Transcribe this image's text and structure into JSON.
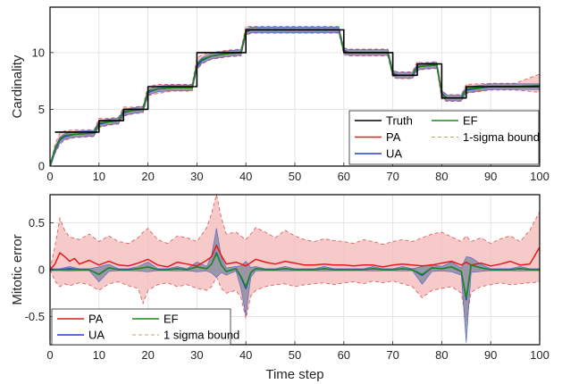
{
  "chart_data": [
    {
      "type": "line",
      "ylabel": "Cardinality",
      "xlim": [
        0,
        100
      ],
      "ylim": [
        0,
        14
      ],
      "xticks": [
        0,
        10,
        20,
        30,
        40,
        50,
        60,
        70,
        80,
        90,
        100
      ],
      "yticks": [
        0,
        5,
        10
      ],
      "grid": true,
      "legend": {
        "placement": "bottom-right",
        "columns": 2
      },
      "series": [
        {
          "name": "Truth",
          "color": "#000000",
          "style": "step",
          "x": [
            1,
            10,
            15,
            20,
            30,
            40,
            60,
            70,
            75,
            80,
            85,
            100
          ],
          "y": [
            3,
            4,
            5,
            7,
            10,
            12,
            10,
            8,
            9,
            6,
            7,
            7
          ]
        },
        {
          "name": "PA",
          "color": "#e31a1c",
          "style": "line",
          "x": [
            0,
            1,
            2,
            3,
            5,
            9,
            10,
            12,
            14,
            15,
            17,
            19,
            20,
            22,
            25,
            29,
            30,
            31,
            33,
            36,
            39,
            40,
            41,
            45,
            50,
            55,
            59,
            60,
            61,
            65,
            69,
            70,
            71,
            74,
            75,
            76,
            79,
            80,
            81,
            84,
            85,
            90,
            95,
            100
          ],
          "y": [
            0,
            1.5,
            2.4,
            2.7,
            2.8,
            2.9,
            3.8,
            3.9,
            4.0,
            4.8,
            4.9,
            5.0,
            6.6,
            6.8,
            6.9,
            6.9,
            9.0,
            9.4,
            9.7,
            9.9,
            10.0,
            11.9,
            12.0,
            12.0,
            12.0,
            12.0,
            12.0,
            10.1,
            10.0,
            10.0,
            10.0,
            8.1,
            8.0,
            8.0,
            8.8,
            8.8,
            8.9,
            6.3,
            6.0,
            6.0,
            6.8,
            7.0,
            7.0,
            7.1
          ]
        },
        {
          "name": "UA",
          "color": "#1f3fd6",
          "style": "line",
          "x": [
            0,
            1,
            2,
            3,
            5,
            9,
            10,
            12,
            14,
            15,
            17,
            19,
            20,
            22,
            25,
            29,
            30,
            31,
            33,
            36,
            39,
            40,
            41,
            45,
            50,
            55,
            59,
            60,
            61,
            65,
            69,
            70,
            71,
            74,
            75,
            76,
            79,
            80,
            81,
            84,
            85,
            90,
            95,
            100
          ],
          "y": [
            0,
            1.4,
            2.3,
            2.6,
            2.8,
            2.9,
            3.7,
            3.9,
            4.0,
            4.7,
            4.9,
            5.0,
            6.5,
            6.8,
            6.9,
            6.9,
            8.8,
            9.3,
            9.7,
            9.9,
            10.0,
            11.8,
            12.0,
            12.0,
            12.0,
            12.0,
            12.0,
            10.2,
            10.0,
            10.0,
            10.0,
            8.2,
            8.0,
            8.0,
            8.7,
            8.8,
            8.9,
            6.4,
            6.0,
            6.0,
            6.7,
            7.0,
            7.0,
            7.0
          ]
        },
        {
          "name": "EF",
          "color": "#1a8a1a",
          "style": "line",
          "x": [
            0,
            1,
            2,
            3,
            5,
            9,
            10,
            12,
            14,
            15,
            17,
            19,
            20,
            22,
            25,
            29,
            30,
            31,
            33,
            36,
            39,
            40,
            41,
            45,
            50,
            55,
            59,
            60,
            61,
            65,
            69,
            70,
            71,
            74,
            75,
            76,
            79,
            80,
            81,
            84,
            85,
            90,
            95,
            100
          ],
          "y": [
            0,
            1.5,
            2.4,
            2.7,
            2.8,
            2.9,
            3.8,
            3.9,
            4.0,
            4.8,
            4.9,
            5.0,
            6.6,
            6.8,
            6.9,
            6.9,
            9.0,
            9.4,
            9.7,
            9.9,
            10.0,
            11.9,
            12.0,
            12.0,
            12.0,
            12.0,
            12.0,
            10.1,
            10.0,
            10.0,
            10.0,
            8.1,
            8.0,
            8.0,
            8.8,
            8.8,
            8.9,
            6.3,
            6.0,
            6.0,
            6.8,
            7.0,
            7.0,
            7.1
          ]
        },
        {
          "name": "1-sigma bound",
          "color": "#e8a0a0",
          "style": "band",
          "x": [
            0,
            1,
            2,
            3,
            5,
            9,
            10,
            12,
            14,
            15,
            17,
            19,
            20,
            22,
            25,
            29,
            30,
            31,
            33,
            36,
            39,
            40,
            41,
            45,
            50,
            55,
            59,
            60,
            61,
            65,
            69,
            70,
            71,
            74,
            75,
            76,
            79,
            80,
            81,
            84,
            85,
            90,
            95,
            100
          ],
          "lower": [
            0,
            1.1,
            1.9,
            2.3,
            2.5,
            2.6,
            3.4,
            3.6,
            3.7,
            4.4,
            4.6,
            4.7,
            6.2,
            6.4,
            6.6,
            6.6,
            8.5,
            9.0,
            9.4,
            9.6,
            9.7,
            11.5,
            11.7,
            11.7,
            11.7,
            11.7,
            11.7,
            9.8,
            9.7,
            9.7,
            9.7,
            7.8,
            7.7,
            7.7,
            8.4,
            8.5,
            8.6,
            5.9,
            5.7,
            5.7,
            6.4,
            6.7,
            6.7,
            6.5
          ],
          "upper": [
            0,
            1.9,
            2.9,
            3.1,
            3.2,
            3.2,
            4.2,
            4.2,
            4.3,
            5.2,
            5.2,
            5.3,
            7.0,
            7.2,
            7.2,
            7.2,
            9.5,
            9.8,
            10.0,
            10.2,
            10.3,
            12.3,
            12.3,
            12.3,
            12.3,
            12.3,
            12.3,
            10.4,
            10.3,
            10.3,
            10.3,
            8.4,
            8.3,
            8.3,
            9.2,
            9.1,
            9.2,
            6.7,
            6.3,
            6.3,
            7.2,
            7.3,
            7.3,
            8.1
          ]
        }
      ]
    },
    {
      "type": "line",
      "xlabel": "Time step",
      "ylabel": "Mitotic error",
      "xlim": [
        0,
        100
      ],
      "ylim": [
        -0.8,
        0.8
      ],
      "xticks": [
        0,
        10,
        20,
        30,
        40,
        50,
        60,
        70,
        80,
        90,
        100
      ],
      "yticks": [
        -0.5,
        0,
        0.5
      ],
      "ytick_labels": [
        "-0.5",
        "0",
        "0.5"
      ],
      "grid": true,
      "legend": {
        "placement": "bottom-left",
        "columns": 2
      },
      "series": [
        {
          "name": "PA",
          "color": "#e31a1c",
          "style": "line",
          "x": [
            0,
            1,
            2,
            3,
            4,
            5,
            6,
            8,
            10,
            12,
            14,
            16,
            18,
            20,
            22,
            24,
            26,
            28,
            30,
            32,
            33,
            34,
            35,
            36,
            38,
            40,
            42,
            44,
            46,
            48,
            50,
            52,
            54,
            56,
            58,
            60,
            62,
            64,
            66,
            68,
            70,
            72,
            74,
            76,
            78,
            80,
            82,
            84,
            85,
            86,
            88,
            90,
            92,
            94,
            96,
            98,
            100
          ],
          "y": [
            0,
            0.06,
            0.18,
            0.14,
            0.09,
            0.12,
            0.06,
            0.1,
            0.05,
            0.09,
            0.05,
            0.04,
            0.07,
            0.11,
            0.05,
            0.03,
            0.08,
            0.06,
            0.04,
            0.1,
            0.14,
            0.26,
            0.15,
            0.06,
            0.08,
            0.04,
            0.11,
            0.08,
            0.06,
            0.09,
            0.07,
            0.05,
            0.05,
            0.06,
            0.05,
            0.05,
            0.04,
            0.05,
            0.05,
            0.03,
            0.05,
            0.06,
            0.05,
            0.04,
            0.05,
            0.07,
            0.09,
            0.05,
            0.08,
            0.05,
            0.07,
            0.04,
            0.06,
            0.09,
            0.05,
            0.06,
            0.24
          ]
        },
        {
          "name": "UA",
          "color": "#1f3fd6",
          "style": "line",
          "x": [
            0,
            2,
            4,
            6,
            8,
            10,
            12,
            14,
            16,
            18,
            20,
            22,
            24,
            26,
            28,
            30,
            32,
            33,
            34,
            35,
            36,
            38,
            39,
            40,
            41,
            42,
            44,
            46,
            48,
            50,
            52,
            54,
            56,
            58,
            60,
            62,
            64,
            66,
            68,
            70,
            72,
            74,
            76,
            78,
            80,
            82,
            84,
            85,
            86,
            88,
            90,
            92,
            94,
            96,
            98,
            100
          ],
          "y": [
            0,
            0.0,
            0.01,
            0.0,
            0.0,
            -0.05,
            0.02,
            0.0,
            0.0,
            0.01,
            0.03,
            0.0,
            0.0,
            0.01,
            0.0,
            0.03,
            0.01,
            0.06,
            0.18,
            0.05,
            -0.02,
            0.01,
            -0.08,
            -0.2,
            -0.03,
            0.01,
            0.0,
            0.0,
            0.01,
            0.0,
            0.0,
            0.0,
            0.01,
            0.0,
            0.0,
            0.0,
            0.0,
            0.01,
            0.0,
            0.0,
            0.01,
            0.0,
            -0.06,
            0.02,
            0.01,
            0.03,
            -0.02,
            -0.32,
            0.05,
            0.02,
            0.0,
            0.0,
            0.0,
            0.01,
            0.0,
            0.0
          ]
        },
        {
          "name": "EF",
          "color": "#1a8a1a",
          "style": "line",
          "x": [
            0,
            2,
            4,
            6,
            8,
            10,
            12,
            14,
            16,
            18,
            20,
            22,
            24,
            26,
            28,
            30,
            32,
            33,
            34,
            35,
            36,
            38,
            39,
            40,
            41,
            42,
            44,
            46,
            48,
            50,
            52,
            54,
            56,
            58,
            60,
            62,
            64,
            66,
            68,
            70,
            72,
            74,
            76,
            78,
            80,
            82,
            84,
            85,
            86,
            88,
            90,
            92,
            94,
            96,
            98,
            100
          ],
          "y": [
            0,
            0.0,
            0.0,
            0.0,
            0.0,
            -0.05,
            0.02,
            0.0,
            0.0,
            0.01,
            0.03,
            0.0,
            0.0,
            0.01,
            0.0,
            0.03,
            0.01,
            0.06,
            0.17,
            0.05,
            -0.02,
            0.01,
            -0.07,
            -0.18,
            -0.03,
            0.01,
            0.0,
            0.0,
            0.01,
            0.0,
            0.0,
            0.0,
            0.01,
            0.0,
            0.0,
            0.0,
            0.0,
            0.01,
            0.0,
            0.0,
            0.01,
            0.0,
            -0.05,
            0.02,
            0.01,
            0.03,
            -0.02,
            -0.3,
            0.05,
            0.02,
            0.0,
            0.0,
            0.0,
            0.01,
            0.0,
            0.0
          ]
        },
        {
          "name": "1 sigma bound",
          "color": "#e8a0a0",
          "style": "band",
          "x": [
            0,
            1,
            2,
            3,
            4,
            6,
            8,
            10,
            12,
            14,
            16,
            18,
            19,
            20,
            22,
            24,
            26,
            28,
            30,
            32,
            33,
            34,
            35,
            36,
            38,
            39,
            40,
            41,
            42,
            44,
            46,
            48,
            50,
            52,
            54,
            56,
            58,
            60,
            62,
            64,
            66,
            68,
            70,
            72,
            74,
            76,
            78,
            80,
            82,
            84,
            85,
            86,
            88,
            90,
            92,
            94,
            96,
            98,
            100
          ],
          "lower": [
            0,
            -0.12,
            -0.18,
            -0.15,
            -0.17,
            -0.14,
            -0.16,
            -0.22,
            -0.15,
            -0.13,
            -0.17,
            -0.2,
            -0.36,
            -0.22,
            -0.16,
            -0.14,
            -0.18,
            -0.16,
            -0.2,
            -0.22,
            -0.18,
            -0.08,
            -0.2,
            -0.25,
            -0.22,
            -0.3,
            -0.52,
            -0.28,
            -0.22,
            -0.18,
            -0.16,
            -0.15,
            -0.18,
            -0.16,
            -0.15,
            -0.14,
            -0.16,
            -0.14,
            -0.13,
            -0.15,
            -0.12,
            -0.14,
            -0.12,
            -0.15,
            -0.18,
            -0.3,
            -0.22,
            -0.2,
            -0.18,
            -0.25,
            -0.55,
            -0.24,
            -0.18,
            -0.16,
            -0.14,
            -0.16,
            -0.15,
            -0.14,
            -0.13
          ],
          "upper": [
            0,
            0.25,
            0.55,
            0.42,
            0.35,
            0.32,
            0.38,
            0.3,
            0.36,
            0.3,
            0.28,
            0.34,
            0.4,
            0.44,
            0.32,
            0.28,
            0.36,
            0.34,
            0.3,
            0.45,
            0.6,
            0.8,
            0.55,
            0.38,
            0.4,
            0.36,
            0.32,
            0.38,
            0.45,
            0.4,
            0.34,
            0.42,
            0.36,
            0.32,
            0.3,
            0.33,
            0.31,
            0.3,
            0.28,
            0.32,
            0.3,
            0.27,
            0.3,
            0.32,
            0.3,
            0.34,
            0.38,
            0.4,
            0.35,
            0.3,
            0.36,
            0.3,
            0.34,
            0.28,
            0.33,
            0.36,
            0.3,
            0.42,
            0.62
          ]
        }
      ]
    }
  ]
}
